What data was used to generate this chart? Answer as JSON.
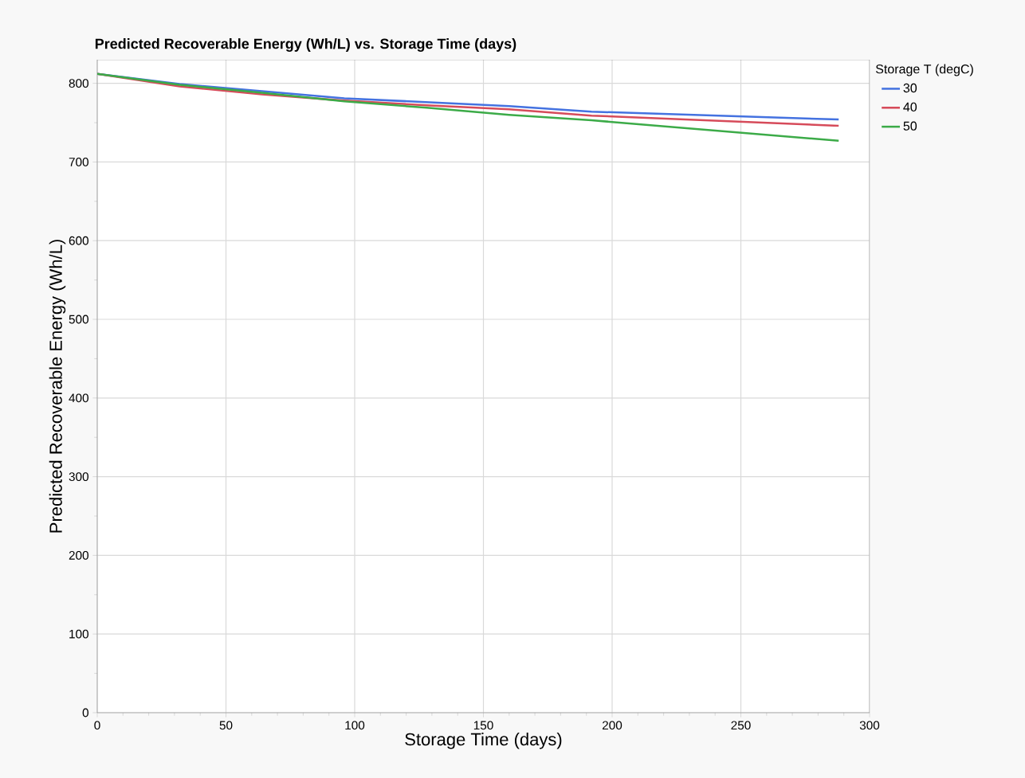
{
  "chart_data": {
    "type": "line",
    "title": "Predicted Recoverable Energy (Wh/L) vs. Storage Time (days)",
    "xlabel": "Storage Time (days)",
    "ylabel": "Predicted Recoverable Energy (Wh/L)",
    "legend_title": "Storage T (degC)",
    "x": [
      0,
      32,
      64,
      96,
      128,
      160,
      192,
      288
    ],
    "series": [
      {
        "name": "30",
        "color": "#4472e0",
        "values": [
          812,
          799,
          790,
          781,
          776,
          771,
          764,
          754
        ]
      },
      {
        "name": "40",
        "color": "#d64b5a",
        "values": [
          812,
          796,
          786,
          778,
          772,
          767,
          759,
          746
        ]
      },
      {
        "name": "50",
        "color": "#3cab48",
        "values": [
          812,
          798,
          788,
          777,
          769,
          760,
          753,
          727
        ]
      }
    ],
    "xlim": [
      0,
      300
    ],
    "xticks": [
      0,
      50,
      100,
      150,
      200,
      250,
      300
    ],
    "ylim": [
      0,
      830
    ],
    "yticks": [
      0,
      100,
      200,
      300,
      400,
      500,
      600,
      700,
      800
    ],
    "grid": true,
    "legend": "top right",
    "marker": "none",
    "line_style": "solid"
  }
}
